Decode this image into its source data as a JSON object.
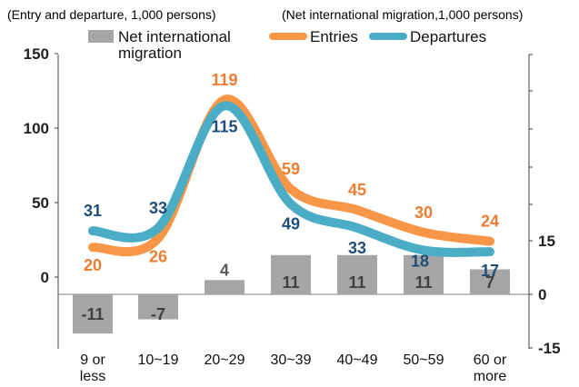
{
  "chart_data": {
    "type": "bar+line",
    "left_axis_title": "(Entry and departure, 1,000 persons)",
    "right_axis_title": "(Net international migration,1,000 persons)",
    "categories": [
      "9 or less",
      "10~19",
      "20~29",
      "30~39",
      "40~49",
      "50~59",
      "60 or more"
    ],
    "category_lines": [
      [
        "9 or",
        "less"
      ],
      [
        "10~19"
      ],
      [
        "20~29"
      ],
      [
        "30~39"
      ],
      [
        "40~49"
      ],
      [
        "50~59"
      ],
      [
        "60 or",
        "more"
      ]
    ],
    "left_ticks": [
      "150",
      "100",
      "50",
      "0"
    ],
    "right_ticks": [
      "15",
      "0",
      "-15"
    ],
    "ylim_left": [
      -15,
      150
    ],
    "ylim_right": [
      -15,
      15
    ],
    "series": [
      {
        "name": "Net international migration",
        "legend_lines": [
          "Net international",
          "migration"
        ],
        "type": "bar",
        "axis": "right",
        "color": "#a6a6a6",
        "values": [
          -11,
          -7,
          4,
          11,
          11,
          11,
          7
        ],
        "labels": [
          "-11",
          "-7",
          "4",
          "11",
          "11",
          "11",
          "7"
        ]
      },
      {
        "name": "Entries",
        "legend_lines": [
          "Entries"
        ],
        "type": "line",
        "axis": "left",
        "color": "#f79646",
        "values": [
          20,
          26,
          119,
          59,
          45,
          30,
          24
        ],
        "labels": [
          "20",
          "26",
          "119",
          "59",
          "45",
          "30",
          "24"
        ]
      },
      {
        "name": "Departures",
        "legend_lines": [
          "Departures"
        ],
        "type": "line",
        "axis": "left",
        "color": "#4bacc6",
        "values": [
          31,
          33,
          115,
          49,
          33,
          18,
          17
        ],
        "labels": [
          "31",
          "33",
          "115",
          "49",
          "33",
          "18",
          "17"
        ]
      }
    ],
    "legend_position": "top",
    "grid": false
  }
}
